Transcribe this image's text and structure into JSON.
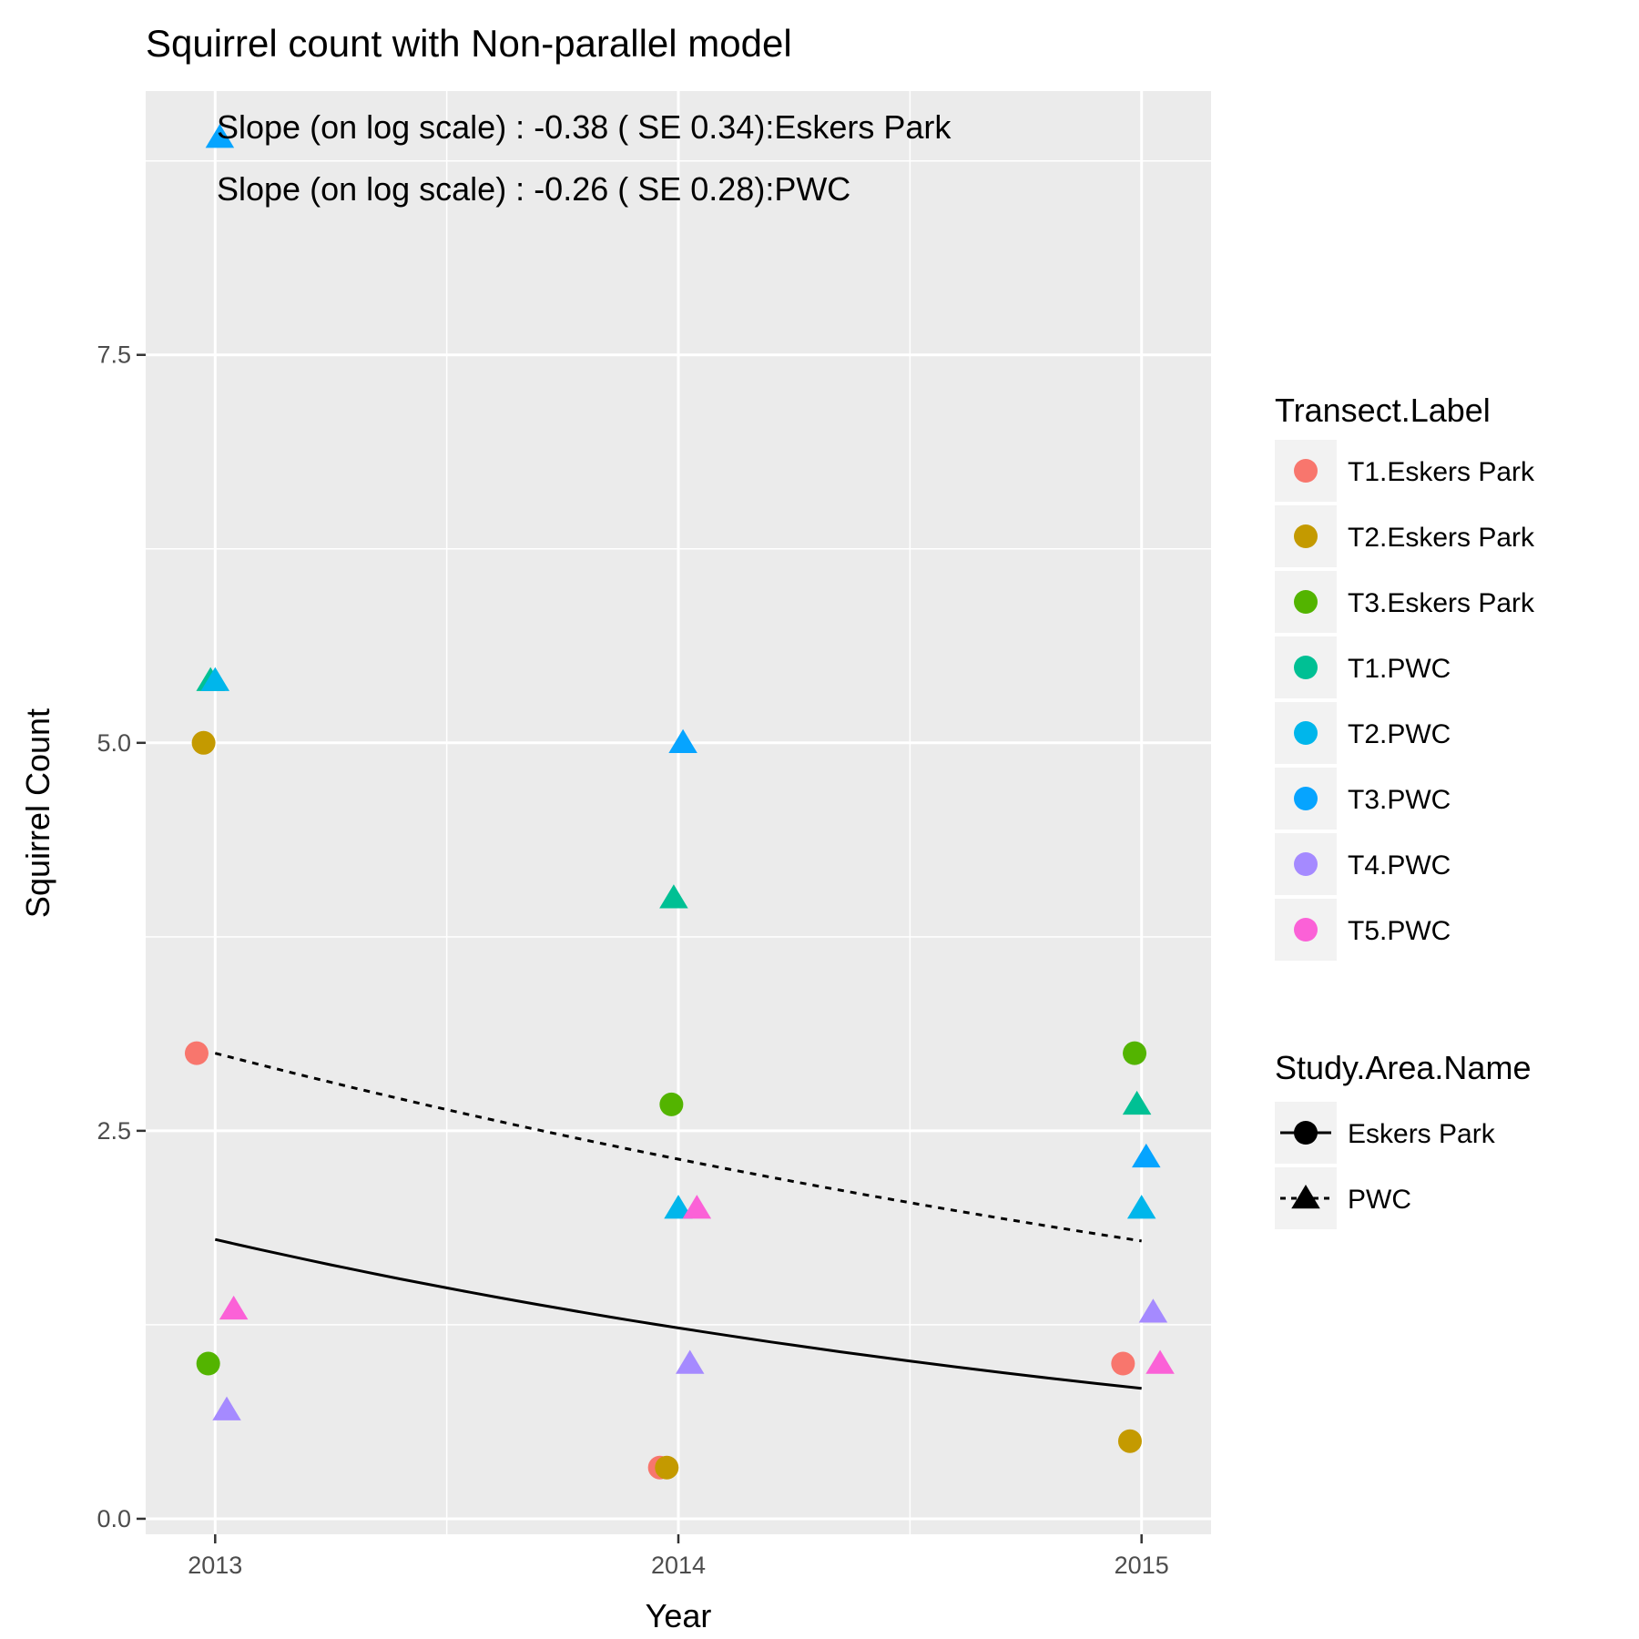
{
  "chart_data": {
    "type": "scatter",
    "title": "Squirrel count with  Non-parallel model",
    "xlabel": "Year",
    "ylabel": "Squirrel Count",
    "xlim": [
      2012.85,
      2015.15
    ],
    "ylim": [
      -0.1,
      9.2
    ],
    "x_ticks": [
      2013,
      2014,
      2015
    ],
    "y_ticks": [
      0.0,
      2.5,
      5.0,
      7.5
    ],
    "y_tick_labels": [
      "0.0",
      "2.5",
      "5.0",
      "7.5"
    ],
    "grid": true,
    "annotations": [
      "Slope (on log scale) : -0.38 ( SE 0.34):Eskers Park",
      "Slope (on log scale) : -0.26 ( SE 0.28):PWC"
    ],
    "legend_color": {
      "title": "Transect.Label",
      "placement": "right",
      "entries": [
        {
          "label": "T1.Eskers Park",
          "color": "#F8766D"
        },
        {
          "label": "T2.Eskers Park",
          "color": "#C49A00"
        },
        {
          "label": "T3.Eskers Park",
          "color": "#53B400"
        },
        {
          "label": "T1.PWC",
          "color": "#00C094"
        },
        {
          "label": "T2.PWC",
          "color": "#00B6EB"
        },
        {
          "label": "T3.PWC",
          "color": "#06A4FF"
        },
        {
          "label": "T4.PWC",
          "color": "#A58AFF"
        },
        {
          "label": "T5.PWC",
          "color": "#FB61D7"
        }
      ]
    },
    "legend_shape": {
      "title": "Study.Area.Name",
      "entries": [
        {
          "label": "Eskers Park",
          "shape": "circle",
          "line": "solid"
        },
        {
          "label": "PWC",
          "shape": "triangle",
          "line": "dotted"
        }
      ]
    },
    "points": [
      {
        "x": 2013,
        "y": 3.0,
        "transect": 0,
        "area": 0
      },
      {
        "x": 2013,
        "y": 5.0,
        "transect": 1,
        "area": 0
      },
      {
        "x": 2013,
        "y": 1.0,
        "transect": 2,
        "area": 0
      },
      {
        "x": 2013,
        "y": 5.4,
        "transect": 3,
        "area": 1
      },
      {
        "x": 2013,
        "y": 5.4,
        "transect": 4,
        "area": 1
      },
      {
        "x": 2013,
        "y": 8.9,
        "transect": 5,
        "area": 1
      },
      {
        "x": 2013,
        "y": 0.7,
        "transect": 6,
        "area": 1
      },
      {
        "x": 2013,
        "y": 1.35,
        "transect": 7,
        "area": 1
      },
      {
        "x": 2014,
        "y": 0.33,
        "transect": 0,
        "area": 0
      },
      {
        "x": 2014,
        "y": 0.33,
        "transect": 1,
        "area": 0
      },
      {
        "x": 2014,
        "y": 2.67,
        "transect": 2,
        "area": 0
      },
      {
        "x": 2014,
        "y": 4.0,
        "transect": 3,
        "area": 1
      },
      {
        "x": 2014,
        "y": 2.0,
        "transect": 4,
        "area": 1
      },
      {
        "x": 2014,
        "y": 5.0,
        "transect": 5,
        "area": 1
      },
      {
        "x": 2014,
        "y": 1.0,
        "transect": 6,
        "area": 1
      },
      {
        "x": 2014,
        "y": 2.0,
        "transect": 7,
        "area": 1
      },
      {
        "x": 2015,
        "y": 1.0,
        "transect": 0,
        "area": 0
      },
      {
        "x": 2015,
        "y": 0.5,
        "transect": 1,
        "area": 0
      },
      {
        "x": 2015,
        "y": 3.0,
        "transect": 2,
        "area": 0
      },
      {
        "x": 2015,
        "y": 2.67,
        "transect": 3,
        "area": 1
      },
      {
        "x": 2015,
        "y": 2.0,
        "transect": 4,
        "area": 1
      },
      {
        "x": 2015,
        "y": 2.33,
        "transect": 5,
        "area": 1
      },
      {
        "x": 2015,
        "y": 1.33,
        "transect": 6,
        "area": 1
      },
      {
        "x": 2015,
        "y": 1.0,
        "transect": 7,
        "area": 1
      }
    ],
    "fit_lines": [
      {
        "area": "Eskers Park",
        "line": "solid",
        "x": [
          2013,
          2014,
          2015
        ],
        "y": [
          1.8,
          1.23,
          0.84
        ]
      },
      {
        "area": "PWC",
        "line": "dotted",
        "x": [
          2013,
          2014,
          2015
        ],
        "y": [
          3.0,
          2.31,
          1.79
        ]
      }
    ]
  }
}
